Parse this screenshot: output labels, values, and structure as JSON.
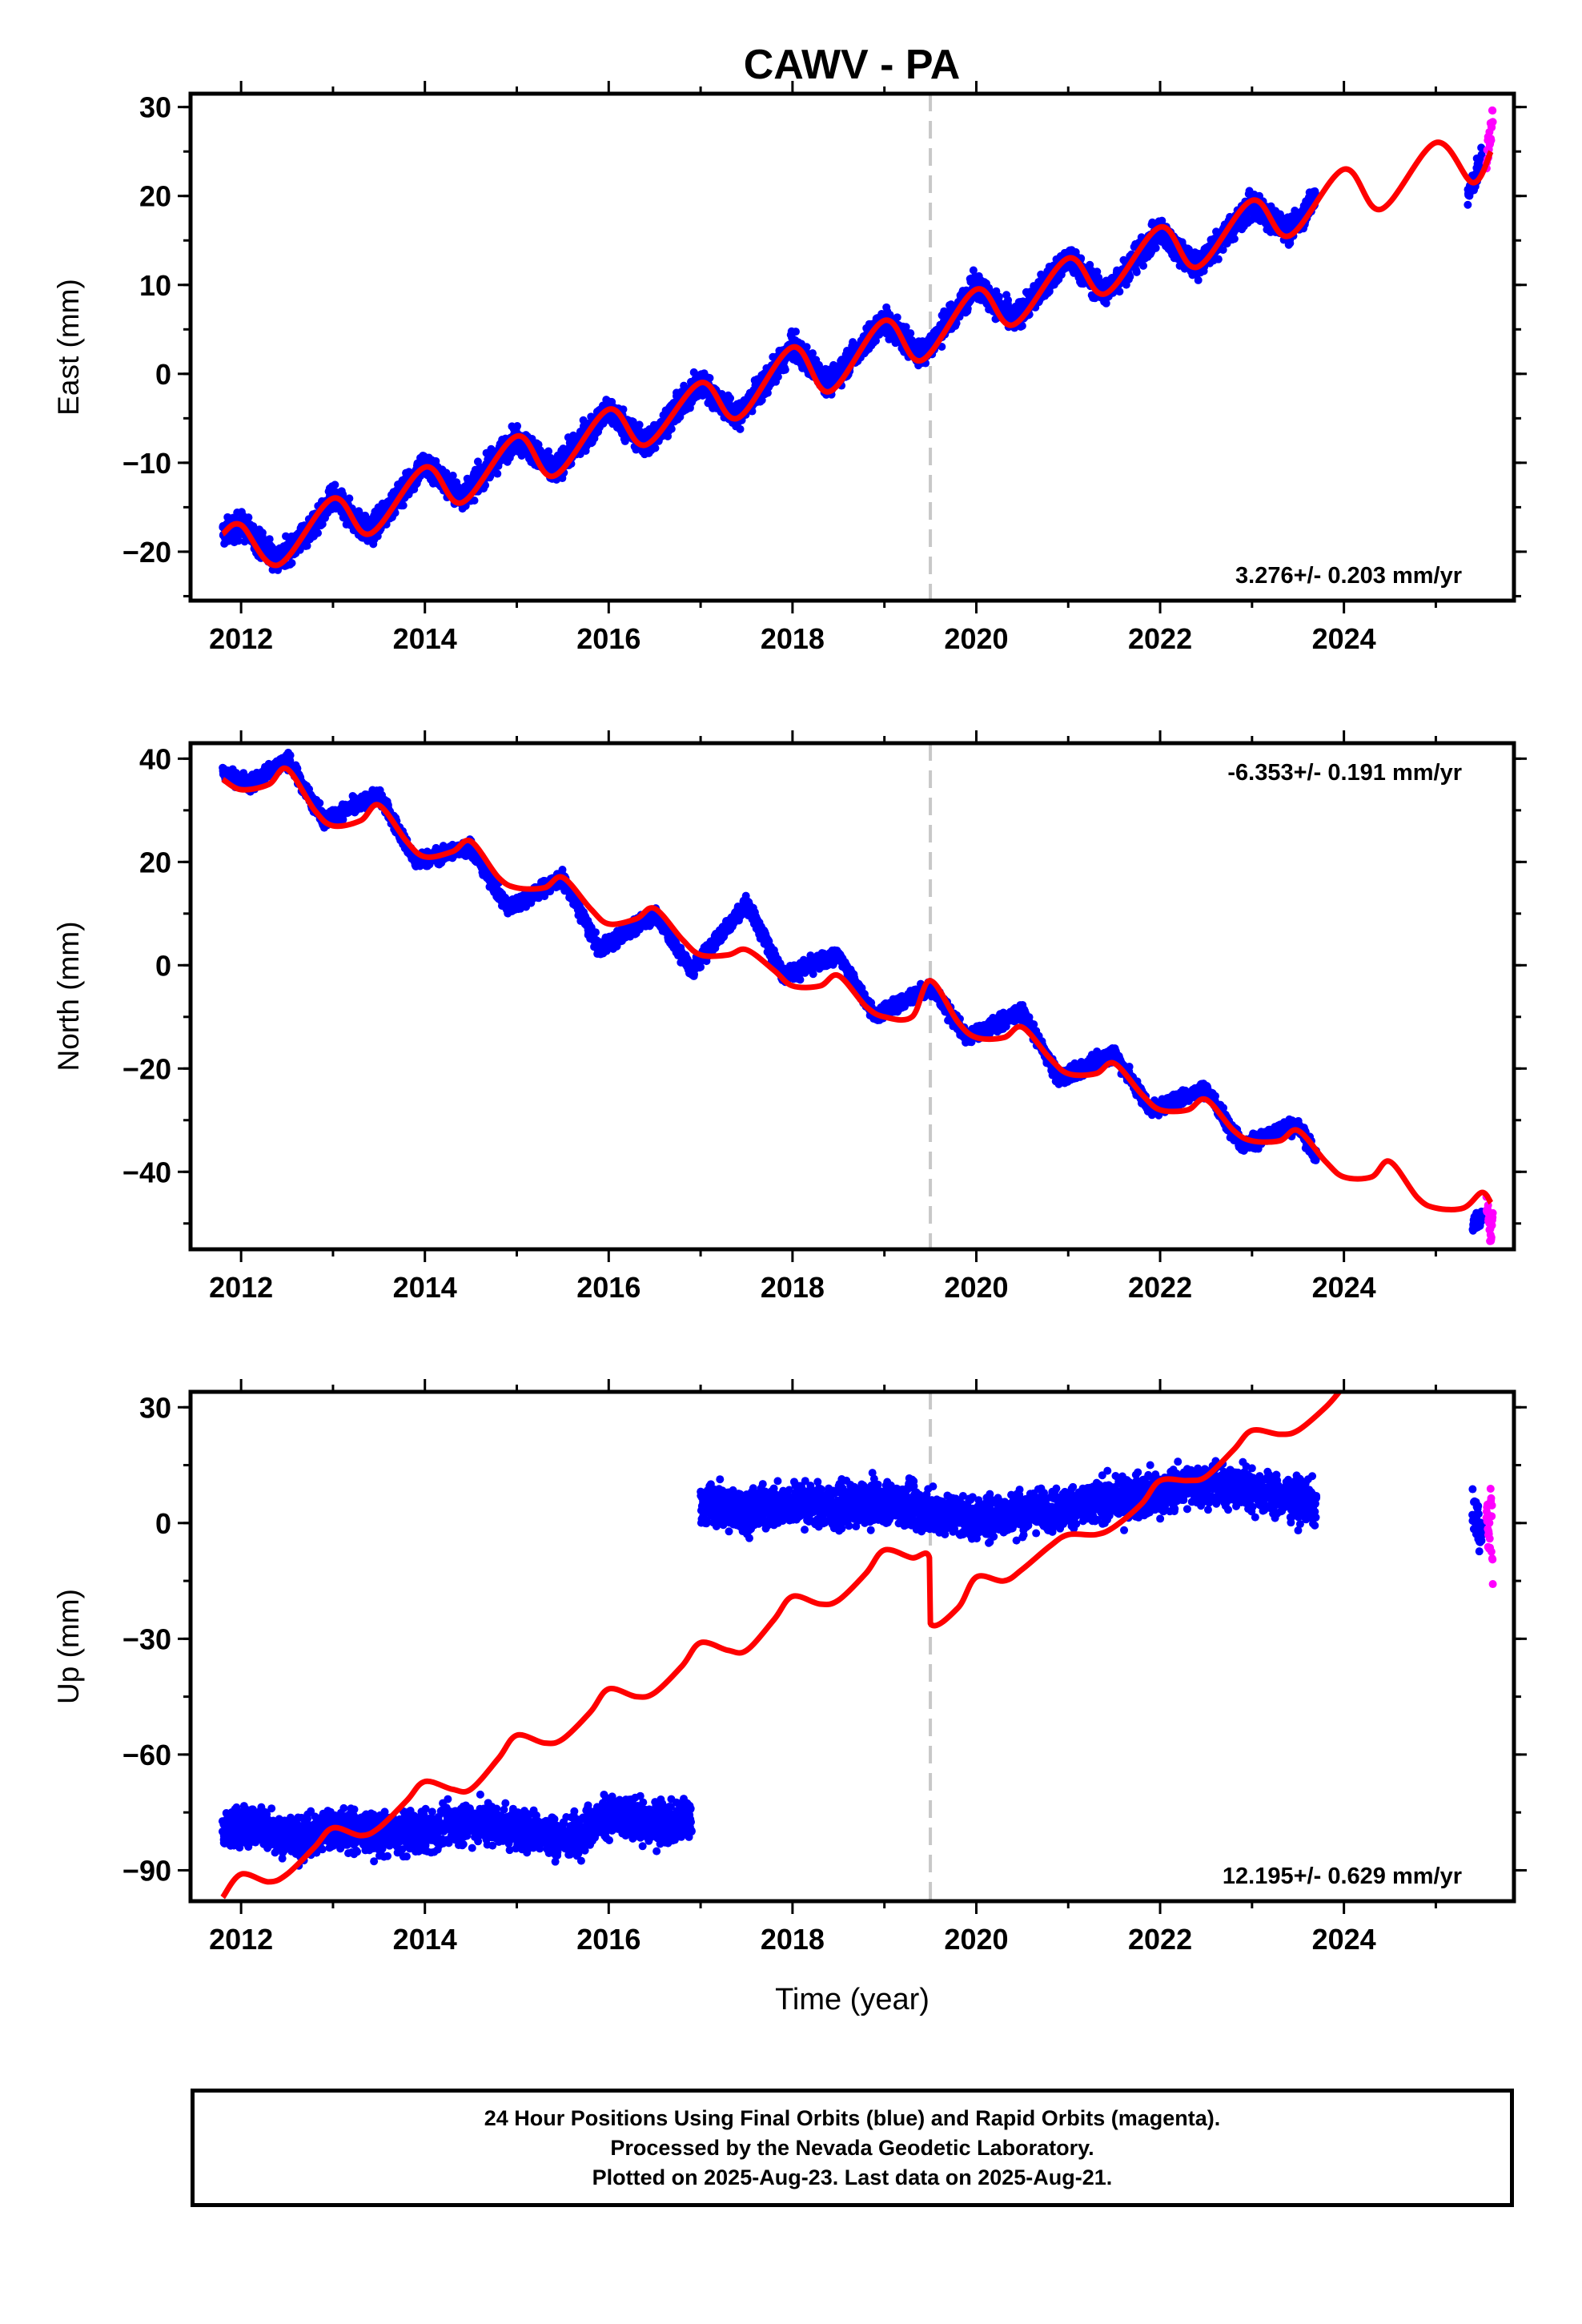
{
  "chart_data": [
    {
      "type": "scatter",
      "panel": "east",
      "title": "CAWV - PA",
      "xlabel": "",
      "ylabel": "East (mm)",
      "xlim": [
        2011.45,
        2025.85
      ],
      "ylim": [
        -25.5,
        31.5
      ],
      "x_ticks": [
        2012,
        2014,
        2016,
        2018,
        2020,
        2022,
        2024
      ],
      "y_ticks": [
        -20,
        -10,
        0,
        10,
        20,
        30
      ],
      "y_tick_labels": [
        "−20",
        "−10",
        "0",
        "10",
        "20",
        "30"
      ],
      "grid": false,
      "break_epoch": 2019.5,
      "rate_label": "3.276+/- 0.203 mm/yr",
      "rate_label_position": "bottom-right",
      "series": [
        {
          "kind": "final_orbits",
          "color": "#0000ff",
          "x": [
            2011.8,
            2012.0,
            2012.4,
            2012.8,
            2013.0,
            2013.4,
            2014.0,
            2014.4,
            2015.0,
            2015.4,
            2016.0,
            2016.4,
            2017.0,
            2017.4,
            2018.0,
            2018.4,
            2019.0,
            2019.4,
            2020.0,
            2020.4,
            2021.0,
            2021.4,
            2022.0,
            2022.4,
            2023.0,
            2023.4,
            2023.7,
            2025.35,
            2025.5
          ],
          "y": [
            -18,
            -17,
            -21,
            -17,
            -14,
            -18,
            -10,
            -14,
            -7,
            -11,
            -4,
            -8,
            -1,
            -5,
            3,
            -1,
            6,
            2,
            10,
            6,
            13,
            9,
            16,
            12,
            19,
            16,
            20,
            20,
            24
          ]
        },
        {
          "kind": "rapid_orbits",
          "color": "#ff00ff",
          "x": [
            2025.55,
            2025.58,
            2025.6,
            2025.62
          ],
          "y": [
            24,
            27,
            26,
            30
          ]
        },
        {
          "kind": "model",
          "color": "#ff0000",
          "x": [
            2011.8,
            2012.0,
            2012.4,
            2013.0,
            2013.4,
            2014.0,
            2014.4,
            2015.0,
            2015.4,
            2016.0,
            2016.4,
            2017.0,
            2017.4,
            2018.0,
            2018.4,
            2019.0,
            2019.4,
            2020.0,
            2020.4,
            2021.0,
            2021.4,
            2022.0,
            2022.4,
            2023.0,
            2023.4,
            2024.0,
            2024.4,
            2025.0,
            2025.4,
            2025.6
          ],
          "y": [
            -18,
            -17,
            -21.5,
            -14,
            -18,
            -10.5,
            -14.5,
            -7,
            -11.5,
            -4,
            -8,
            -1,
            -5,
            3,
            -2,
            6,
            1.5,
            9.5,
            5.5,
            13,
            9,
            16.5,
            12,
            19.5,
            15.5,
            23,
            18.5,
            26,
            21.5,
            25
          ]
        }
      ]
    },
    {
      "type": "scatter",
      "panel": "north",
      "title": "",
      "xlabel": "",
      "ylabel": "North (mm)",
      "xlim": [
        2011.45,
        2025.85
      ],
      "ylim": [
        -55,
        43
      ],
      "x_ticks": [
        2012,
        2014,
        2016,
        2018,
        2020,
        2022,
        2024
      ],
      "y_ticks": [
        -40,
        -20,
        0,
        20,
        40
      ],
      "y_tick_labels": [
        "−40",
        "−20",
        "0",
        "20",
        "40"
      ],
      "grid": false,
      "break_epoch": 2019.5,
      "rate_label": "-6.353+/- 0.191 mm/yr",
      "rate_label_position": "top-right",
      "series": [
        {
          "kind": "final_orbits",
          "color": "#0000ff",
          "x": [
            2011.8,
            2012.1,
            2012.5,
            2012.9,
            2013.5,
            2013.9,
            2014.5,
            2014.9,
            2015.5,
            2015.9,
            2016.5,
            2016.9,
            2017.5,
            2017.9,
            2018.5,
            2018.9,
            2019.5,
            2019.9,
            2020.5,
            2020.9,
            2021.5,
            2021.9,
            2022.5,
            2022.9,
            2023.5,
            2023.7,
            2025.4,
            2025.5
          ],
          "y": [
            37,
            35,
            40,
            28,
            33,
            20,
            23,
            11,
            17,
            3,
            10,
            -1,
            12,
            -2,
            2,
            -10,
            -4,
            -14,
            -9,
            -22,
            -17,
            -28,
            -24,
            -35,
            -31,
            -37,
            -50,
            -49
          ]
        },
        {
          "kind": "rapid_orbits",
          "color": "#ff00ff",
          "x": [
            2025.55,
            2025.58,
            2025.6,
            2025.62
          ],
          "y": [
            -46,
            -50,
            -53,
            -48
          ]
        },
        {
          "kind": "model",
          "color": "#ff0000",
          "x": [
            2011.8,
            2012.0,
            2012.3,
            2012.5,
            2012.8,
            2013.0,
            2013.3,
            2013.5,
            2013.8,
            2014.0,
            2014.3,
            2014.5,
            2014.8,
            2015.0,
            2015.3,
            2015.5,
            2015.8,
            2016.0,
            2016.3,
            2016.5,
            2016.8,
            2017.0,
            2017.3,
            2017.5,
            2017.8,
            2018.0,
            2018.3,
            2018.5,
            2018.8,
            2019.0,
            2019.3,
            2019.5,
            2019.8,
            2020.0,
            2020.3,
            2020.5,
            2020.8,
            2021.0,
            2021.3,
            2021.5,
            2021.8,
            2022.0,
            2022.3,
            2022.5,
            2022.8,
            2023.0,
            2023.3,
            2023.5,
            2023.8,
            2024.0,
            2024.3,
            2024.5,
            2024.8,
            2025.0,
            2025.3,
            2025.5,
            2025.6
          ],
          "y": [
            36,
            34,
            35,
            38,
            30,
            27,
            28,
            31,
            24,
            21,
            22,
            24,
            17,
            15,
            15,
            17,
            11,
            8,
            9,
            11,
            5,
            2,
            2,
            3,
            -1,
            -4,
            -4,
            -2,
            -8,
            -10,
            -10,
            -3,
            -11,
            -14,
            -14,
            -12,
            -18,
            -21,
            -21,
            -19,
            -25,
            -28,
            -28,
            -26,
            -32,
            -34,
            -34,
            -32,
            -38,
            -41,
            -41,
            -38,
            -45,
            -47,
            -47,
            -44,
            -46
          ]
        }
      ]
    },
    {
      "type": "scatter",
      "panel": "up",
      "title": "",
      "xlabel": "Time (year)",
      "ylabel": "Up (mm)",
      "xlim": [
        2011.45,
        2025.85
      ],
      "ylim": [
        -98,
        34
      ],
      "x_ticks": [
        2012,
        2014,
        2016,
        2018,
        2020,
        2022,
        2024
      ],
      "y_ticks": [
        -90,
        -60,
        -30,
        0,
        30
      ],
      "y_tick_labels": [
        "−90",
        "−60",
        "−30",
        "0",
        "30"
      ],
      "grid": false,
      "break_epoch": 2019.5,
      "rate_label": "12.195+/- 0.629 mm/yr",
      "rate_label_position": "bottom-right",
      "series": [
        {
          "kind": "final_orbits",
          "color": "#0000ff",
          "x": [
            2011.8,
            2012.2,
            2012.6,
            2013.0,
            2013.5,
            2014.0,
            2014.5,
            2015.0,
            2015.5,
            2016.0,
            2016.5,
            2016.9,
            2017.0,
            2017.5,
            2018.0,
            2018.5,
            2019.0,
            2019.5,
            2020.0,
            2020.5,
            2021.0,
            2021.5,
            2022.0,
            2022.5,
            2023.0,
            2023.5,
            2023.7,
            2025.4,
            2025.5
          ],
          "y": [
            -80,
            -78,
            -82,
            -79,
            -81,
            -80,
            -77,
            -79,
            -82,
            -76,
            -78,
            -77,
            5,
            3,
            5,
            4,
            6,
            3,
            1,
            3,
            4,
            6,
            8,
            10,
            9,
            6,
            5,
            3,
            -3
          ]
        },
        {
          "kind": "rapid_orbits",
          "color": "#ff00ff",
          "x": [
            2025.55,
            2025.58,
            2025.6,
            2025.62
          ],
          "y": [
            2,
            -6,
            8,
            -14
          ]
        },
        {
          "kind": "model",
          "color": "#ff0000",
          "x": [
            2011.8,
            2012.0,
            2012.3,
            2012.5,
            2012.8,
            2013.0,
            2013.3,
            2013.5,
            2013.8,
            2014.0,
            2014.3,
            2014.5,
            2014.8,
            2015.0,
            2015.3,
            2015.5,
            2015.8,
            2016.0,
            2016.3,
            2016.5,
            2016.8,
            2017.0,
            2017.3,
            2017.5,
            2017.8,
            2018.0,
            2018.3,
            2018.5,
            2018.8,
            2019.0,
            2019.3,
            2019.49,
            2019.5,
            2019.8,
            2020.0,
            2020.3,
            2020.5,
            2020.8,
            2021.0,
            2021.3,
            2021.5,
            2021.8,
            2022.0,
            2022.3,
            2022.5,
            2022.8,
            2023.0,
            2023.3,
            2023.5,
            2023.8,
            2023.95
          ],
          "y": [
            -97,
            -91,
            -93,
            -91,
            -84,
            -79,
            -81,
            -79,
            -72,
            -67,
            -69,
            -69,
            -61,
            -55,
            -57,
            -56,
            -49,
            -43,
            -45,
            -44,
            -37,
            -31,
            -33,
            -33,
            -25,
            -19,
            -21,
            -20,
            -13,
            -7,
            -9,
            -9,
            -26,
            -22,
            -14,
            -15,
            -12,
            -6,
            -3,
            -3,
            -1,
            5,
            11,
            11,
            12,
            19,
            24,
            23,
            24,
            30,
            34
          ]
        }
      ]
    }
  ],
  "caption": {
    "line1": "24 Hour Positions Using Final Orbits (blue) and Rapid Orbits (magenta).",
    "line2": "Processed by the Nevada Geodetic Laboratory.",
    "line3": "Plotted on 2025-Aug-23. Last data on 2025-Aug-21."
  }
}
